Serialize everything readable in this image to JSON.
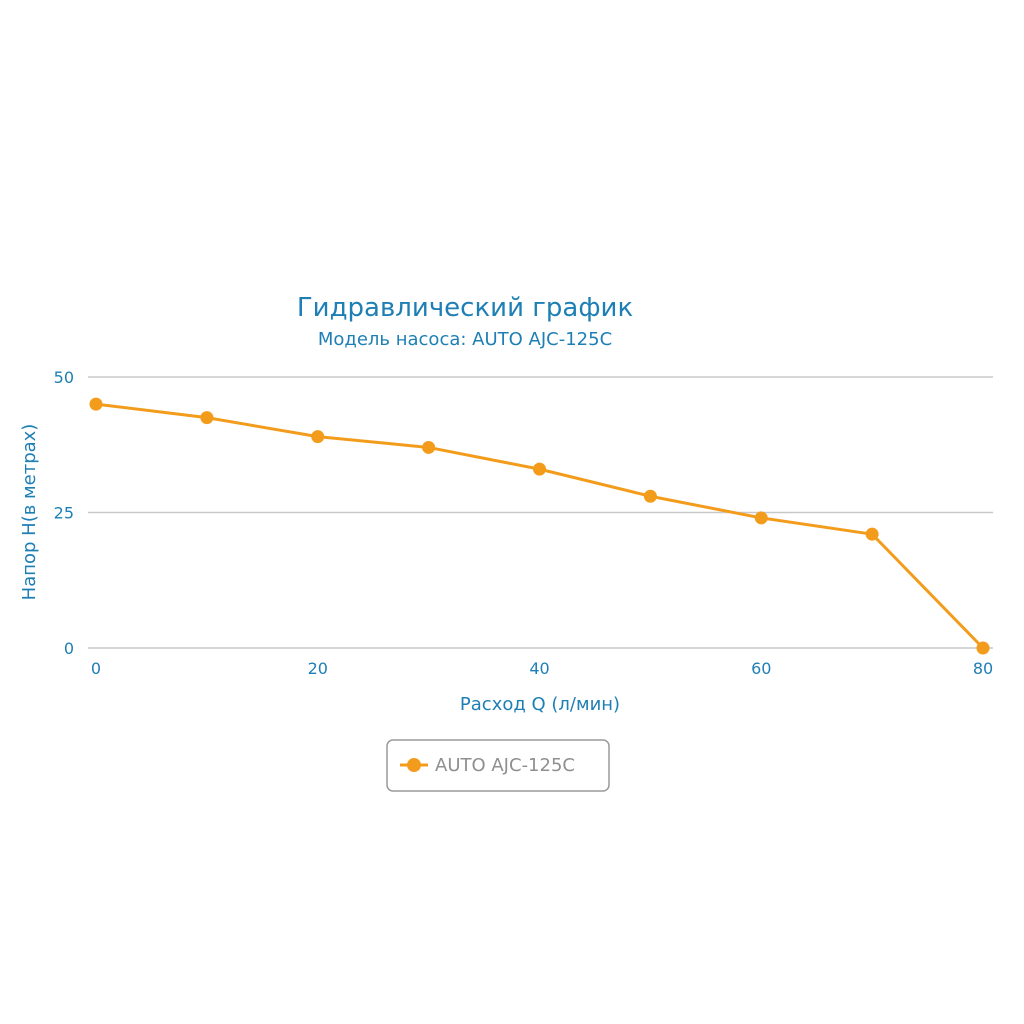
{
  "colors": {
    "series": "#f39c1c",
    "text": "#1e7fb5",
    "grid": "#c8c8c8",
    "legend_text": "#8f8f8f"
  },
  "chart_data": {
    "type": "line",
    "title": "Гидравлический график",
    "subtitle": "Модель насоса: AUTO AJC-125C",
    "xlabel": "Расход Q (л/мин)",
    "ylabel": "Напор H(в метрах)",
    "xlim": [
      0,
      80
    ],
    "ylim": [
      0,
      50
    ],
    "x_ticks": [
      "0",
      "20",
      "40",
      "60",
      "80"
    ],
    "y_ticks": [
      "0",
      "25",
      "50"
    ],
    "grid": true,
    "legend_position": "bottom-center",
    "series": [
      {
        "name": "AUTO AJC-125C",
        "x": [
          0,
          10,
          20,
          30,
          40,
          50,
          60,
          70,
          80
        ],
        "y": [
          45,
          42.5,
          39,
          37,
          33,
          28,
          24,
          21,
          0
        ]
      }
    ]
  }
}
